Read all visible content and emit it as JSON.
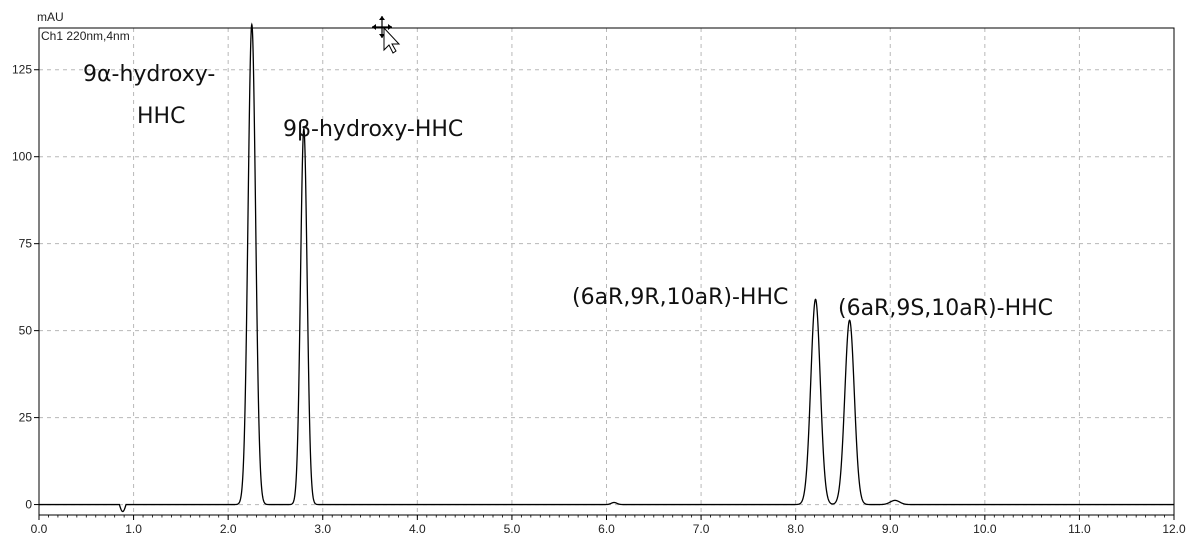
{
  "chart_data": {
    "type": "line",
    "y_unit_label": "mAU",
    "channel_label": "Ch1 220nm,4nm",
    "xlim": [
      0.0,
      12.0
    ],
    "ylim": [
      -3,
      137
    ],
    "x_ticks": [
      "0.0",
      "1.0",
      "2.0",
      "3.0",
      "4.0",
      "5.0",
      "6.0",
      "7.0",
      "8.0",
      "9.0",
      "10.0",
      "11.0",
      "12.0"
    ],
    "y_ticks": [
      "0",
      "25",
      "50",
      "75",
      "100",
      "125"
    ],
    "grid": true,
    "peaks": [
      {
        "x": 2.25,
        "y": 138,
        "width": 0.04,
        "label": "9α-hydroxy-HHC"
      },
      {
        "x": 2.8,
        "y": 108,
        "width": 0.035,
        "label": "9β-hydroxy-HHC"
      },
      {
        "x": 8.21,
        "y": 59,
        "width": 0.05,
        "label": "(6aR,9R,10aR)-HHC"
      },
      {
        "x": 8.57,
        "y": 53,
        "width": 0.05,
        "label": "(6aR,9S,10aR)-HHC"
      }
    ],
    "labels": {
      "peak1_line1": "9α-hydroxy-",
      "peak1_line2": "HHC",
      "peak2": "9β-hydroxy-HHC",
      "peak3": "(6aR,9R,10aR)-HHC",
      "peak4": "(6aR,9S,10aR)-HHC"
    }
  }
}
